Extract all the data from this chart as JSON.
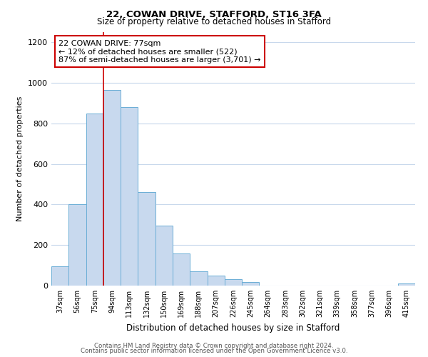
{
  "title1": "22, COWAN DRIVE, STAFFORD, ST16 3FA",
  "title2": "Size of property relative to detached houses in Stafford",
  "xlabel": "Distribution of detached houses by size in Stafford",
  "ylabel": "Number of detached properties",
  "bar_labels": [
    "37sqm",
    "56sqm",
    "75sqm",
    "94sqm",
    "113sqm",
    "132sqm",
    "150sqm",
    "169sqm",
    "188sqm",
    "207sqm",
    "226sqm",
    "245sqm",
    "264sqm",
    "283sqm",
    "302sqm",
    "321sqm",
    "339sqm",
    "358sqm",
    "377sqm",
    "396sqm",
    "415sqm"
  ],
  "bar_values": [
    95,
    400,
    848,
    965,
    880,
    460,
    295,
    160,
    72,
    50,
    33,
    18,
    0,
    0,
    0,
    0,
    0,
    0,
    0,
    0,
    12
  ],
  "bar_color": "#c8d9ee",
  "bar_edge_color": "#6baed6",
  "vline_index": 2.5,
  "annotation_box_text": "22 COWAN DRIVE: 77sqm\n← 12% of detached houses are smaller (522)\n87% of semi-detached houses are larger (3,701) →",
  "annotation_box_color": "white",
  "annotation_box_edge_color": "#cc0000",
  "vline_color": "#cc0000",
  "ylim": [
    0,
    1250
  ],
  "yticks": [
    0,
    200,
    400,
    600,
    800,
    1000,
    1200
  ],
  "footer1": "Contains HM Land Registry data © Crown copyright and database right 2024.",
  "footer2": "Contains public sector information licensed under the Open Government Licence v3.0.",
  "bg_color": "#ffffff",
  "grid_color": "#c8d8ec"
}
